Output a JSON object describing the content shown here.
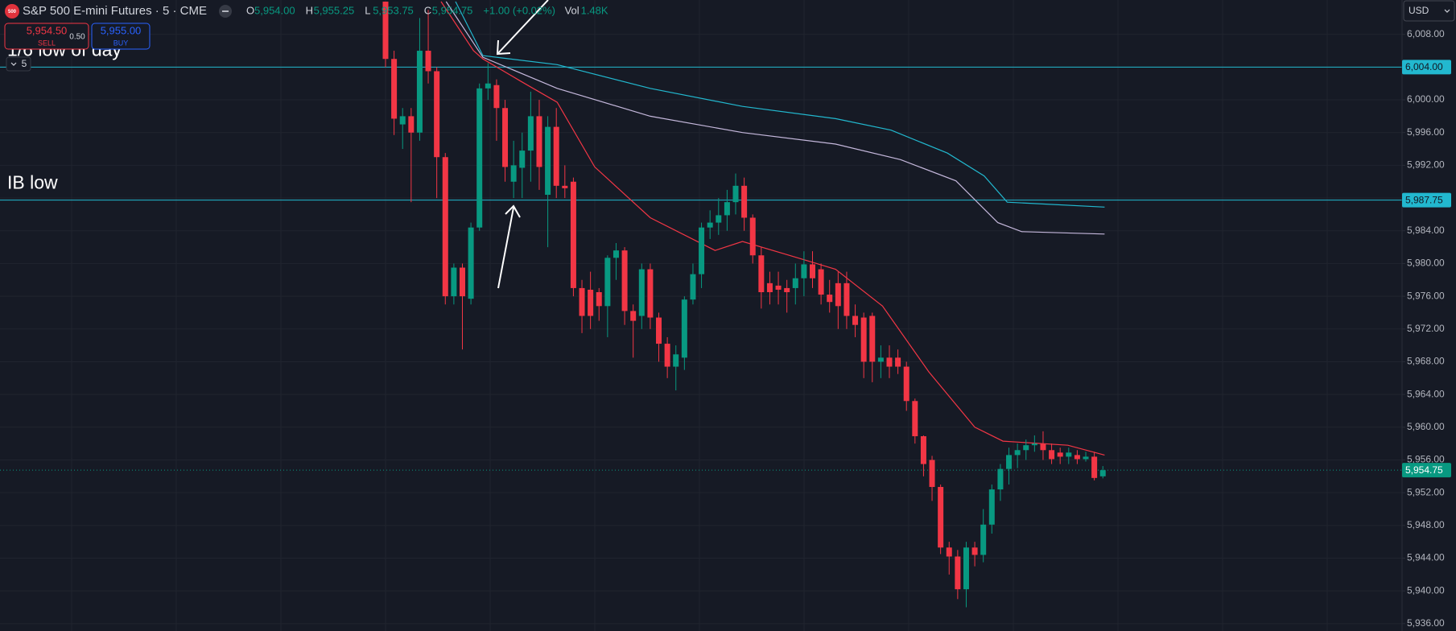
{
  "chart_data": {
    "type": "candlestick",
    "title": "S&P 500 E-mini Futures · 5 · CME",
    "ohlc": [
      {
        "key": "O",
        "text": "5,954.00"
      },
      {
        "key": "H",
        "text": "5,955.25"
      },
      {
        "key": "L",
        "text": "5,953.75"
      },
      {
        "key": "C",
        "text": "5,954.75"
      }
    ],
    "change": "+1.00 (+0.02%)",
    "volume": {
      "key": "Vol",
      "text": "1.48K"
    },
    "sell": {
      "price": "5,954.50",
      "label": "SELL"
    },
    "spread": "0.50",
    "buy": {
      "price": "5,955.00",
      "label": "BUY"
    },
    "interval_badge": "5",
    "currency": "USD",
    "up_color": "#089981",
    "down_color": "#f23645",
    "open": [
      6012,
      6005,
      5997,
      5998,
      5996,
      6006,
      6003.5,
      5993,
      5976,
      5979.5,
      5975.7,
      5984.4,
      6001.4,
      6001.8,
      5999,
      5990,
      5991.7,
      5993.8,
      5998,
      5988.4,
      5996.7,
      5989.5,
      5990,
      5977,
      5976.8,
      5976.5,
      5974.8,
      5980.7,
      5981.6,
      5974.2,
      5973.6,
      5979.3,
      5973.4,
      5970.2,
      5967.4,
      5968.5,
      5975.6,
      5978.7,
      5984.4,
      5985,
      5985.9,
      5987.5,
      5989.5,
      5985.6,
      5981,
      5977.6,
      5977.3,
      5977,
      5977,
      5978.2,
      5979.9,
      5979.3,
      5976.2,
      5977.6,
      5977.6,
      5973.6,
      5973.4,
      5973.6,
      5968,
      5968.5,
      5968.5,
      5967.4,
      5963.2,
      5958.9,
      5956,
      5952.7,
      5945.3,
      5944.2,
      5940.2,
      5945.3,
      5944.4,
      5948.1,
      5952.4,
      5954.9,
      5956.6,
      5957.2,
      5957.8,
      5958,
      5957.2,
      5956.9,
      5956.4,
      5956.6,
      5956.1,
      5956.4,
      5954
    ],
    "high": [
      6012,
      6006,
      5999,
      5999,
      6010,
      6011,
      6004,
      5993.5,
      5980,
      5980,
      5985,
      6002,
      6004.5,
      6002.5,
      6000,
      5995,
      5996,
      6001,
      6000,
      5998,
      5999,
      5992,
      5990.5,
      5978,
      5979,
      5977,
      5981,
      5982.5,
      5982,
      5975,
      5980,
      5980,
      5974,
      5971,
      5970,
      5976,
      5980,
      5985,
      5986.5,
      5988,
      5989,
      5991,
      5990.5,
      5986,
      5982,
      5979,
      5979,
      5978,
      5980,
      5981.5,
      5981.5,
      5980,
      5978,
      5979,
      5979,
      5975,
      5974,
      5974,
      5970,
      5970,
      5969.5,
      5968,
      5963.5,
      5959,
      5956.5,
      5953,
      5946,
      5945,
      5946,
      5946,
      5950,
      5953,
      5955.5,
      5957.5,
      5958,
      5958.5,
      5959,
      5959.5,
      5958,
      5957.5,
      5957.5,
      5957.2,
      5957,
      5957,
      5955.25
    ],
    "low": [
      6004,
      5995.7,
      5994,
      5987.5,
      5995,
      6002,
      5988,
      5975,
      5975,
      5969.5,
      5975,
      5984,
      6000,
      5995,
      5990,
      5988,
      5988,
      5990,
      5989,
      5982,
      5988,
      5988,
      5976,
      5971.5,
      5972,
      5973,
      5971,
      5978,
      5972.5,
      5968.5,
      5972,
      5972,
      5968,
      5966,
      5964.5,
      5967,
      5975,
      5977,
      5983,
      5983.5,
      5984,
      5986,
      5984,
      5980,
      5974.5,
      5975,
      5975,
      5974,
      5975,
      5976,
      5977,
      5975,
      5974,
      5972,
      5972,
      5971,
      5966,
      5965.5,
      5966,
      5966,
      5966.5,
      5962,
      5958,
      5954,
      5951,
      5944.5,
      5942,
      5939,
      5938,
      5943,
      5943.5,
      5947,
      5951,
      5953,
      5955,
      5956,
      5957,
      5956,
      5955.5,
      5955.5,
      5955.5,
      5955.5,
      5955.8,
      5953.5,
      5953.75
    ],
    "close": [
      6005,
      5997.7,
      5998,
      5996,
      6006,
      6003.5,
      5993,
      5976,
      5979.5,
      5976,
      5984.4,
      6001.4,
      6002,
      5999,
      5991.8,
      5992,
      5993.8,
      5998,
      5991.8,
      5996.7,
      5989.5,
      5989.2,
      5977,
      5973.6,
      5973.6,
      5974.8,
      5980.7,
      5981.6,
      5974.2,
      5973,
      5979.3,
      5973.4,
      5970.2,
      5967.4,
      5968.9,
      5975.6,
      5978.7,
      5984.4,
      5985,
      5985.9,
      5987.5,
      5989.5,
      5985.6,
      5981,
      5976.5,
      5976.5,
      5976.8,
      5976.5,
      5978.2,
      5979.9,
      5978.2,
      5976.2,
      5975.3,
      5974.8,
      5973.6,
      5972.5,
      5968,
      5968,
      5968.5,
      5967.4,
      5967.4,
      5963.2,
      5958.9,
      5955.5,
      5952.7,
      5945.3,
      5944.2,
      5940.2,
      5945.3,
      5944.4,
      5948.1,
      5952.4,
      5954.9,
      5956.6,
      5957.2,
      5957.8,
      5958,
      5957.2,
      5956.1,
      5956.4,
      5956.9,
      5956.1,
      5956.4,
      5953.8,
      5954.75
    ],
    "series": [
      {
        "color": "#f23645",
        "x": [
          6.5,
          10.3,
          11.4,
          15.8,
          20.1,
          24.5,
          31,
          38.6,
          41.8,
          47.3,
          52.7,
          58.2,
          63.6,
          69,
          72.3,
          79.9,
          84.2
        ],
        "values": [
          6012,
          6006,
          6005,
          6002.3,
          5999.7,
          5991.8,
          5985.6,
          5981.6,
          5982.7,
          5981,
          5979.3,
          5974.8,
          5966.8,
          5960,
          5958.3,
          5957.8,
          5956.6
        ]
      },
      {
        "color": "#22b8cf",
        "x": [
          8.2,
          11.4,
          20.1,
          31,
          41.8,
          52.7,
          59.2,
          65.8,
          70.1,
          72.8,
          84.2
        ],
        "values": [
          6012,
          6005.4,
          6004.3,
          6001.4,
          5999.2,
          5997.7,
          5996.3,
          5993.5,
          5990.7,
          5987.5,
          5986.9
        ]
      },
      {
        "color": "#c5b8dc",
        "x": [
          7.1,
          11.4,
          20.1,
          31,
          41.8,
          52.7,
          60.3,
          66.8,
          71.7,
          74.5,
          84.2
        ],
        "values": [
          6012,
          6005.2,
          6001.4,
          5998,
          5996,
          5994.6,
          5992.7,
          5990.1,
          5985,
          5983.9,
          5983.6
        ]
      }
    ],
    "price_lines": [
      {
        "value": 6004,
        "label": "6,004.00",
        "color": "#22b8cf",
        "note": "1/6 low of day"
      },
      {
        "value": 5987.75,
        "label": "5,987.75",
        "color": "#22b8cf",
        "note": "IB low"
      },
      {
        "value": 5954.75,
        "label": "5,954.75",
        "color": "#089981",
        "style": "dotted"
      }
    ],
    "ylim": [
      5935.1,
      6012.2
    ],
    "yticks": [
      {
        "value": 5936,
        "label": "5,936.00"
      },
      {
        "value": 5940,
        "label": "5,940.00"
      },
      {
        "value": 5944,
        "label": "5,944.00"
      },
      {
        "value": 5948,
        "label": "5,948.00"
      },
      {
        "value": 5952,
        "label": "5,952.00"
      },
      {
        "value": 5956,
        "label": "5,956.00"
      },
      {
        "value": 5960,
        "label": "5,960.00"
      },
      {
        "value": 5964,
        "label": "5,964.00"
      },
      {
        "value": 5968,
        "label": "5,968.00"
      },
      {
        "value": 5972,
        "label": "5,972.00"
      },
      {
        "value": 5976,
        "label": "5,976.00"
      },
      {
        "value": 5980,
        "label": "5,980.00"
      },
      {
        "value": 5984,
        "label": "5,984.00"
      },
      {
        "value": 5988,
        "label": "5,988.00"
      },
      {
        "value": 5992,
        "label": "5,992.00"
      },
      {
        "value": 5996,
        "label": "5,996.00"
      },
      {
        "value": 6000,
        "label": "6,000.00"
      },
      {
        "value": 6004,
        "label": "6,004.00"
      },
      {
        "value": 6008,
        "label": "6,008.00"
      }
    ],
    "grid": true
  }
}
